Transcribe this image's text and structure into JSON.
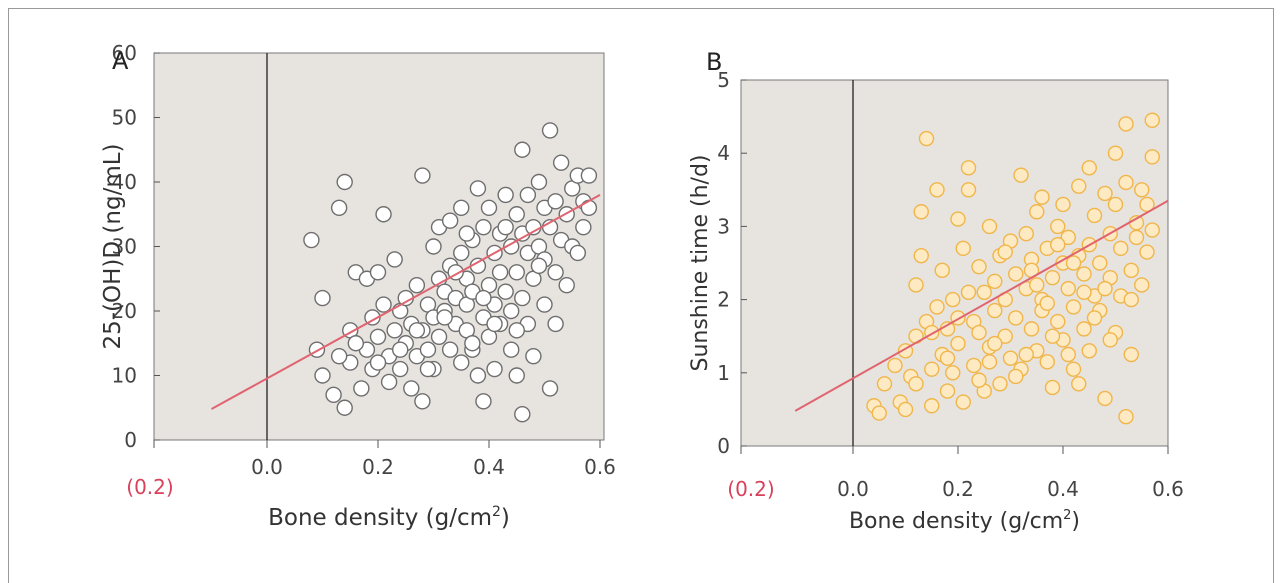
{
  "chart_data": [
    {
      "type": "scatter",
      "panel_label": "A",
      "xlabel_main": "Bone density (g/cm",
      "xlabel_sup": "2",
      "xlabel_close": ")",
      "ylabel": "25-(OH)D (ng/mL)",
      "x_ticks": [
        "0.0",
        "0.2",
        "0.4",
        "0.6"
      ],
      "x_tick_values": [
        0.0,
        0.2,
        0.4,
        0.6
      ],
      "neg_tick_label": "(0.2)",
      "y_ticks": [
        "0",
        "10",
        "20",
        "30",
        "40",
        "50",
        "60"
      ],
      "y_tick_values": [
        0,
        10,
        20,
        30,
        40,
        50,
        60
      ],
      "xlim": [
        -0.21,
        0.6
      ],
      "ylim": [
        0,
        60
      ],
      "regression": {
        "x0": -0.1,
        "y0": 4.8,
        "x1": 0.6,
        "y1": 38.0
      },
      "colors": {
        "background": "#e7e3df",
        "marker_fill": "#ffffff",
        "marker_stroke": "#6e6e6e",
        "line": "#e06470",
        "neg_label": "#d9415b"
      },
      "points": [
        [
          0.08,
          31
        ],
        [
          0.09,
          14
        ],
        [
          0.1,
          22
        ],
        [
          0.1,
          10
        ],
        [
          0.12,
          7
        ],
        [
          0.13,
          36
        ],
        [
          0.14,
          40
        ],
        [
          0.14,
          5
        ],
        [
          0.15,
          17
        ],
        [
          0.15,
          12
        ],
        [
          0.16,
          26
        ],
        [
          0.17,
          8
        ],
        [
          0.18,
          25
        ],
        [
          0.18,
          14
        ],
        [
          0.19,
          19
        ],
        [
          0.19,
          11
        ],
        [
          0.2,
          26
        ],
        [
          0.2,
          16
        ],
        [
          0.21,
          35
        ],
        [
          0.21,
          21
        ],
        [
          0.22,
          9
        ],
        [
          0.22,
          13
        ],
        [
          0.23,
          28
        ],
        [
          0.23,
          17
        ],
        [
          0.24,
          20
        ],
        [
          0.24,
          11
        ],
        [
          0.25,
          15
        ],
        [
          0.25,
          22
        ],
        [
          0.26,
          8
        ],
        [
          0.26,
          18
        ],
        [
          0.27,
          13
        ],
        [
          0.27,
          24
        ],
        [
          0.28,
          41
        ],
        [
          0.28,
          17
        ],
        [
          0.28,
          6
        ],
        [
          0.29,
          21
        ],
        [
          0.29,
          14
        ],
        [
          0.3,
          19
        ],
        [
          0.3,
          30
        ],
        [
          0.3,
          11
        ],
        [
          0.31,
          25
        ],
        [
          0.31,
          16
        ],
        [
          0.31,
          33
        ],
        [
          0.32,
          20
        ],
        [
          0.32,
          23
        ],
        [
          0.33,
          14
        ],
        [
          0.33,
          27
        ],
        [
          0.33,
          34
        ],
        [
          0.34,
          18
        ],
        [
          0.34,
          22
        ],
        [
          0.35,
          12
        ],
        [
          0.35,
          29
        ],
        [
          0.35,
          36
        ],
        [
          0.36,
          21
        ],
        [
          0.36,
          17
        ],
        [
          0.36,
          25
        ],
        [
          0.37,
          31
        ],
        [
          0.37,
          14
        ],
        [
          0.37,
          23
        ],
        [
          0.38,
          10
        ],
        [
          0.38,
          27
        ],
        [
          0.38,
          39
        ],
        [
          0.39,
          19
        ],
        [
          0.39,
          6
        ],
        [
          0.39,
          33
        ],
        [
          0.4,
          24
        ],
        [
          0.4,
          16
        ],
        [
          0.4,
          36
        ],
        [
          0.41,
          29
        ],
        [
          0.41,
          21
        ],
        [
          0.41,
          11
        ],
        [
          0.42,
          26
        ],
        [
          0.42,
          32
        ],
        [
          0.42,
          18
        ],
        [
          0.43,
          38
        ],
        [
          0.43,
          23
        ],
        [
          0.44,
          30
        ],
        [
          0.44,
          14
        ],
        [
          0.44,
          20
        ],
        [
          0.45,
          35
        ],
        [
          0.45,
          26
        ],
        [
          0.45,
          10
        ],
        [
          0.46,
          45
        ],
        [
          0.46,
          32
        ],
        [
          0.46,
          4
        ],
        [
          0.46,
          22
        ],
        [
          0.47,
          29
        ],
        [
          0.47,
          38
        ],
        [
          0.47,
          18
        ],
        [
          0.48,
          33
        ],
        [
          0.48,
          13
        ],
        [
          0.48,
          25
        ],
        [
          0.49,
          40
        ],
        [
          0.49,
          30
        ],
        [
          0.5,
          36
        ],
        [
          0.5,
          21
        ],
        [
          0.5,
          28
        ],
        [
          0.51,
          48
        ],
        [
          0.51,
          33
        ],
        [
          0.51,
          8
        ],
        [
          0.52,
          37
        ],
        [
          0.52,
          26
        ],
        [
          0.52,
          18
        ],
        [
          0.53,
          43
        ],
        [
          0.53,
          31
        ],
        [
          0.54,
          35
        ],
        [
          0.54,
          24
        ],
        [
          0.55,
          39
        ],
        [
          0.55,
          30
        ],
        [
          0.56,
          41
        ],
        [
          0.56,
          29
        ],
        [
          0.57,
          37
        ],
        [
          0.57,
          33
        ],
        [
          0.58,
          41
        ],
        [
          0.58,
          36
        ],
        [
          0.43,
          33
        ],
        [
          0.36,
          32
        ],
        [
          0.32,
          19
        ],
        [
          0.27,
          17
        ],
        [
          0.24,
          14
        ],
        [
          0.45,
          17
        ],
        [
          0.49,
          27
        ],
        [
          0.39,
          22
        ],
        [
          0.34,
          26
        ],
        [
          0.2,
          12
        ],
        [
          0.16,
          15
        ],
        [
          0.13,
          13
        ],
        [
          0.29,
          11
        ],
        [
          0.37,
          15
        ],
        [
          0.41,
          18
        ]
      ]
    },
    {
      "type": "scatter",
      "panel_label": "B",
      "xlabel_main": "Bone density (g/cm",
      "xlabel_sup": "2",
      "xlabel_close": ")",
      "ylabel": "Sunshine time (h/d)",
      "x_ticks": [
        "0.0",
        "0.2",
        "0.4",
        "0.6"
      ],
      "x_tick_values": [
        0.0,
        0.2,
        0.4,
        0.6
      ],
      "neg_tick_label": "(0.2)",
      "y_ticks": [
        "0",
        "1",
        "2",
        "3",
        "4",
        "5"
      ],
      "y_tick_values": [
        0,
        1,
        2,
        3,
        4,
        5
      ],
      "xlim": [
        -0.21,
        0.6
      ],
      "ylim": [
        0,
        5
      ],
      "regression": {
        "x0": -0.11,
        "y0": 0.48,
        "x1": 0.6,
        "y1": 3.35
      },
      "colors": {
        "background": "#e7e3df",
        "marker_fill": "#fde9c2",
        "marker_stroke": "#f0b64a",
        "line": "#e06470",
        "neg_label": "#d9415b"
      },
      "points": [
        [
          0.04,
          0.55
        ],
        [
          0.05,
          0.45
        ],
        [
          0.06,
          0.85
        ],
        [
          0.08,
          1.1
        ],
        [
          0.09,
          0.6
        ],
        [
          0.1,
          0.5
        ],
        [
          0.1,
          1.3
        ],
        [
          0.11,
          0.95
        ],
        [
          0.12,
          2.2
        ],
        [
          0.12,
          1.5
        ],
        [
          0.13,
          3.2
        ],
        [
          0.13,
          2.6
        ],
        [
          0.14,
          4.2
        ],
        [
          0.14,
          1.7
        ],
        [
          0.15,
          1.05
        ],
        [
          0.15,
          0.55
        ],
        [
          0.16,
          3.5
        ],
        [
          0.16,
          1.9
        ],
        [
          0.17,
          2.4
        ],
        [
          0.17,
          1.25
        ],
        [
          0.18,
          0.75
        ],
        [
          0.18,
          1.6
        ],
        [
          0.19,
          2.0
        ],
        [
          0.19,
          1.0
        ],
        [
          0.2,
          3.1
        ],
        [
          0.2,
          1.4
        ],
        [
          0.21,
          2.7
        ],
        [
          0.21,
          0.6
        ],
        [
          0.22,
          3.8
        ],
        [
          0.22,
          3.5
        ],
        [
          0.22,
          2.1
        ],
        [
          0.23,
          1.7
        ],
        [
          0.23,
          1.1
        ],
        [
          0.24,
          2.45
        ],
        [
          0.24,
          1.55
        ],
        [
          0.25,
          0.75
        ],
        [
          0.25,
          2.1
        ],
        [
          0.26,
          3.0
        ],
        [
          0.26,
          1.35
        ],
        [
          0.27,
          2.25
        ],
        [
          0.27,
          1.85
        ],
        [
          0.28,
          0.85
        ],
        [
          0.28,
          2.6
        ],
        [
          0.29,
          1.5
        ],
        [
          0.29,
          2.0
        ],
        [
          0.3,
          2.8
        ],
        [
          0.3,
          1.2
        ],
        [
          0.31,
          2.35
        ],
        [
          0.31,
          1.75
        ],
        [
          0.32,
          3.7
        ],
        [
          0.32,
          1.05
        ],
        [
          0.33,
          2.9
        ],
        [
          0.33,
          2.15
        ],
        [
          0.34,
          1.6
        ],
        [
          0.34,
          2.55
        ],
        [
          0.35,
          3.2
        ],
        [
          0.35,
          1.3
        ],
        [
          0.36,
          2.0
        ],
        [
          0.36,
          3.4
        ],
        [
          0.36,
          1.85
        ],
        [
          0.37,
          2.7
        ],
        [
          0.37,
          1.15
        ],
        [
          0.38,
          2.3
        ],
        [
          0.38,
          0.8
        ],
        [
          0.39,
          3.0
        ],
        [
          0.39,
          1.7
        ],
        [
          0.4,
          2.5
        ],
        [
          0.4,
          3.3
        ],
        [
          0.4,
          1.45
        ],
        [
          0.41,
          2.15
        ],
        [
          0.41,
          2.85
        ],
        [
          0.42,
          1.9
        ],
        [
          0.42,
          1.05
        ],
        [
          0.43,
          3.55
        ],
        [
          0.43,
          2.6
        ],
        [
          0.43,
          0.85
        ],
        [
          0.44,
          2.35
        ],
        [
          0.44,
          1.6
        ],
        [
          0.45,
          3.8
        ],
        [
          0.45,
          2.75
        ],
        [
          0.45,
          1.3
        ],
        [
          0.46,
          2.05
        ],
        [
          0.46,
          3.15
        ],
        [
          0.47,
          2.5
        ],
        [
          0.47,
          1.85
        ],
        [
          0.48,
          3.45
        ],
        [
          0.48,
          0.65
        ],
        [
          0.49,
          2.3
        ],
        [
          0.49,
          2.9
        ],
        [
          0.5,
          4.0
        ],
        [
          0.5,
          1.55
        ],
        [
          0.5,
          3.3
        ],
        [
          0.51,
          2.7
        ],
        [
          0.51,
          2.05
        ],
        [
          0.52,
          4.4
        ],
        [
          0.52,
          0.4
        ],
        [
          0.52,
          3.6
        ],
        [
          0.53,
          2.4
        ],
        [
          0.53,
          1.25
        ],
        [
          0.54,
          3.05
        ],
        [
          0.54,
          2.85
        ],
        [
          0.55,
          2.2
        ],
        [
          0.55,
          3.5
        ],
        [
          0.56,
          3.3
        ],
        [
          0.56,
          2.65
        ],
        [
          0.57,
          4.45
        ],
        [
          0.57,
          3.95
        ],
        [
          0.57,
          2.95
        ],
        [
          0.38,
          1.5
        ],
        [
          0.33,
          1.25
        ],
        [
          0.27,
          1.4
        ],
        [
          0.24,
          0.9
        ],
        [
          0.46,
          1.75
        ],
        [
          0.42,
          2.5
        ],
        [
          0.35,
          2.2
        ],
        [
          0.29,
          2.65
        ],
        [
          0.18,
          1.2
        ],
        [
          0.15,
          1.55
        ],
        [
          0.2,
          1.75
        ],
        [
          0.44,
          2.1
        ],
        [
          0.31,
          0.95
        ],
        [
          0.37,
          1.95
        ],
        [
          0.48,
          2.15
        ],
        [
          0.53,
          2.0
        ],
        [
          0.26,
          1.15
        ],
        [
          0.41,
          1.25
        ],
        [
          0.49,
          1.45
        ],
        [
          0.12,
          0.85
        ],
        [
          0.34,
          2.4
        ],
        [
          0.39,
          2.75
        ]
      ]
    }
  ]
}
